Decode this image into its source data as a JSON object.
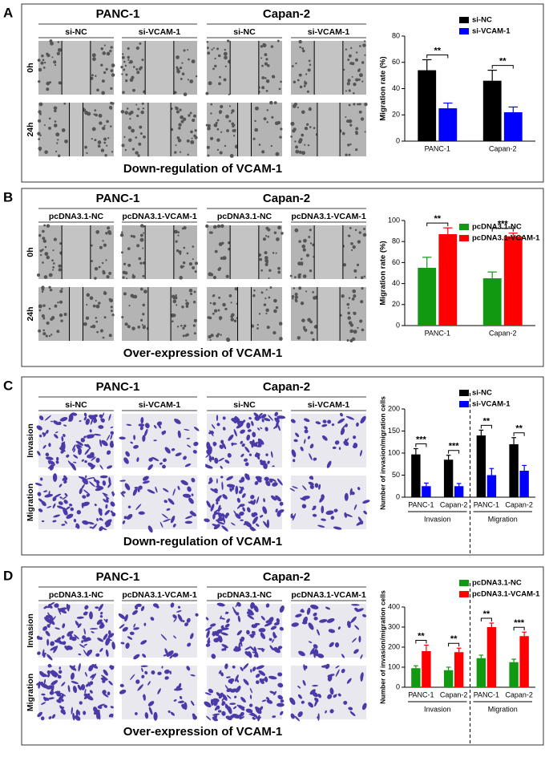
{
  "panels": [
    {
      "label": "A",
      "groups": [
        "PANC-1",
        "Capan-2"
      ],
      "columns": [
        "si-NC",
        "si-VCAM-1",
        "si-NC",
        "si-VCAM-1"
      ],
      "rows": [
        "0h",
        "24h"
      ],
      "caption": "Down-regulation of VCAM-1"
    },
    {
      "label": "B",
      "groups": [
        "PANC-1",
        "Capan-2"
      ],
      "columns": [
        "pcDNA3.1-NC",
        "pcDNA3.1-VCAM-1",
        "pcDNA3.1-NC",
        "pcDNA3.1-VCAM-1"
      ],
      "rows": [
        "0h",
        "24h"
      ],
      "caption": "Over-expression of VCAM-1"
    },
    {
      "label": "C",
      "groups": [
        "PANC-1",
        "Capan-2"
      ],
      "columns": [
        "si-NC",
        "si-VCAM-1",
        "si-NC",
        "si-VCAM-1"
      ],
      "rows": [
        "Invasion",
        "Migration"
      ],
      "caption": "Down-regulation of VCAM-1"
    },
    {
      "label": "D",
      "groups": [
        "PANC-1",
        "Capan-2"
      ],
      "columns": [
        "pcDNA3.1-NC",
        "pcDNA3.1-VCAM-1",
        "pcDNA3.1-NC",
        "pcDNA3.1-VCAM-1"
      ],
      "rows": [
        "Invasion",
        "Migration"
      ],
      "caption": "Over-expression of VCAM-1"
    }
  ],
  "chart_data": [
    {
      "type": "bar",
      "ylabel": "Migration rate (%)",
      "categories": [
        "PANC-1",
        "Capan-2"
      ],
      "series": [
        {
          "name": "si-NC",
          "color": "#000000",
          "values": [
            54,
            46
          ],
          "errors": [
            8,
            8
          ]
        },
        {
          "name": "si-VCAM-1",
          "color": "#0000ff",
          "values": [
            25,
            22
          ],
          "errors": [
            4,
            4
          ]
        }
      ],
      "annotations": [
        "**",
        "**"
      ],
      "ylim": [
        0,
        80
      ],
      "yticks": [
        0,
        20,
        40,
        60,
        80
      ],
      "legend": "upper right"
    },
    {
      "type": "bar",
      "ylabel": "Migration rate (%)",
      "categories": [
        "PANC-1",
        "Capan-2"
      ],
      "series": [
        {
          "name": "pcDNA3.1-NC",
          "color": "#119911",
          "values": [
            55,
            45
          ],
          "errors": [
            10,
            6
          ]
        },
        {
          "name": "pcDNA3.1-VCAM-1",
          "color": "#ff0000",
          "values": [
            87,
            85
          ],
          "errors": [
            6,
            3
          ]
        }
      ],
      "annotations": [
        "**",
        "***"
      ],
      "ylim": [
        0,
        100
      ],
      "yticks": [
        0,
        20,
        40,
        60,
        80,
        100
      ],
      "legend": "upper right"
    },
    {
      "type": "bar",
      "ylabel": "Number of invasion/migration cells",
      "categories": [
        "PANC-1",
        "Capan-2",
        "PANC-1",
        "Capan-2"
      ],
      "groups": [
        "Invasion",
        "Migration"
      ],
      "series": [
        {
          "name": "si-NC",
          "color": "#000000",
          "values": [
            97,
            85,
            140,
            120
          ],
          "errors": [
            13,
            10,
            12,
            15
          ]
        },
        {
          "name": "si-VCAM-1",
          "color": "#0000ff",
          "values": [
            25,
            25,
            50,
            60
          ],
          "errors": [
            7,
            6,
            15,
            12
          ]
        }
      ],
      "annotations": [
        "***",
        "***",
        "**",
        "**"
      ],
      "ylim": [
        0,
        200
      ],
      "yticks": [
        0,
        50,
        100,
        150,
        200
      ],
      "legend": "upper right"
    },
    {
      "type": "bar",
      "ylabel": "Number of invasion/migration cells",
      "categories": [
        "PANC-1",
        "Capan-2",
        "PANC-1",
        "Capan-2"
      ],
      "groups": [
        "Invasion",
        "Migration"
      ],
      "series": [
        {
          "name": "pcDNA3.1-NC",
          "color": "#119911",
          "values": [
            95,
            85,
            145,
            125
          ],
          "errors": [
            12,
            15,
            15,
            15
          ]
        },
        {
          "name": "pcDNA3.1-VCAM-1",
          "color": "#ff0000",
          "values": [
            180,
            175,
            300,
            255
          ],
          "errors": [
            30,
            20,
            20,
            20
          ]
        }
      ],
      "annotations": [
        "**",
        "**",
        "**",
        "***"
      ],
      "ylim": [
        0,
        400
      ],
      "yticks": [
        0,
        100,
        200,
        300,
        400
      ],
      "legend": "upper right"
    }
  ]
}
